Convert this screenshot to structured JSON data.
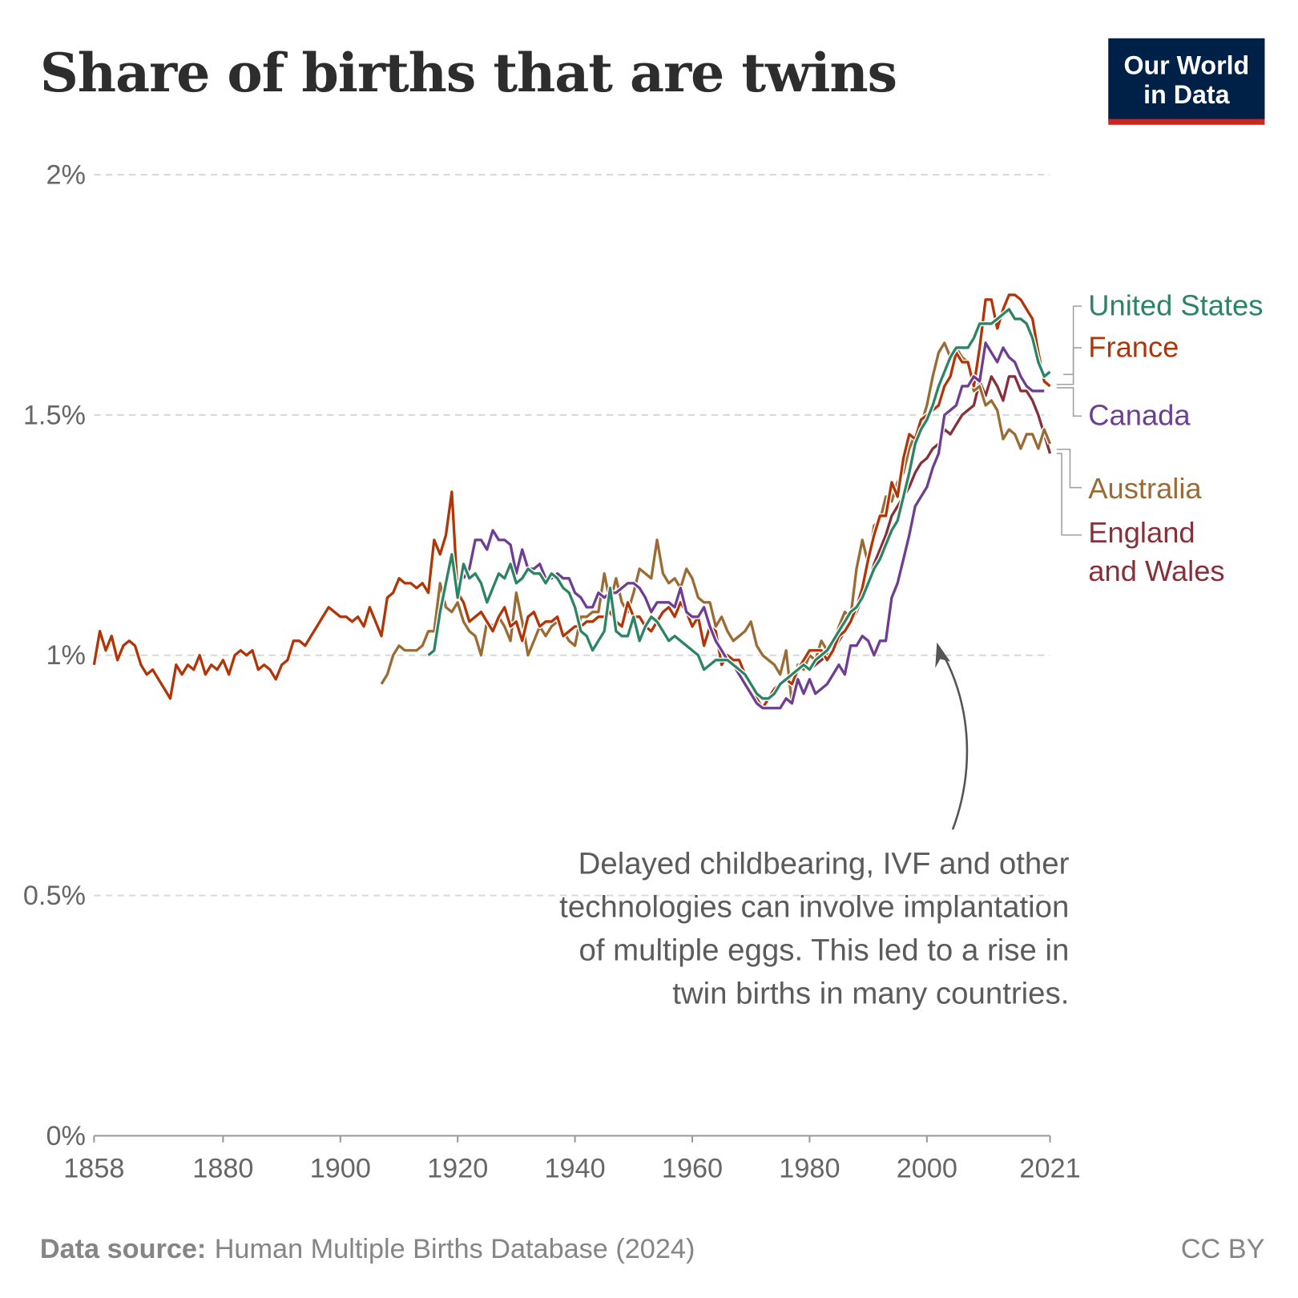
{
  "header": {
    "title": "Share of births that are twins",
    "logo": "Our World in Data",
    "logo_line1": "Our World",
    "logo_line2": "in Data"
  },
  "footer": {
    "source_label": "Data source:",
    "source_text": "Human Multiple Births Database (2024)",
    "license": "CC BY"
  },
  "annotation": {
    "lines": [
      "Delayed childbearing, IVF and other",
      "technologies can involve implantation",
      "of multiple eggs. This led to a rise in",
      "twin births in many countries."
    ]
  },
  "chart_data": {
    "type": "line",
    "title": "Share of births that are twins",
    "xlim": [
      1858,
      2021
    ],
    "ylim": [
      0,
      2
    ],
    "x_ticks": [
      "1858",
      "1880",
      "1900",
      "1920",
      "1940",
      "1960",
      "1980",
      "2000",
      "2021"
    ],
    "y_ticks": [
      "0%",
      "0.5%",
      "1%",
      "1.5%",
      "2%"
    ],
    "grid": "horizontal dashed",
    "legend": "right, labels at line ends",
    "series": [
      {
        "name": "United States",
        "color": "#2c8465",
        "start": 1915,
        "values": [
          1.0,
          1.01,
          1.09,
          1.15,
          1.21,
          1.12,
          1.19,
          1.16,
          1.17,
          1.15,
          1.11,
          1.14,
          1.17,
          1.16,
          1.19,
          1.15,
          1.16,
          1.18,
          1.17,
          1.17,
          1.15,
          1.17,
          1.16,
          1.14,
          1.13,
          1.1,
          1.05,
          1.04,
          1.01,
          1.03,
          1.05,
          1.14,
          1.05,
          1.04,
          1.04,
          1.08,
          1.03,
          1.06,
          1.08,
          1.07,
          1.05,
          1.03,
          1.04,
          1.03,
          1.02,
          1.01,
          1.0,
          0.97,
          0.98,
          0.99,
          0.99,
          0.99,
          0.98,
          0.97,
          0.96,
          0.94,
          0.92,
          0.91,
          0.91,
          0.92,
          0.94,
          0.95,
          0.96,
          0.97,
          0.98,
          0.97,
          0.99,
          1.0,
          1.01,
          1.03,
          1.05,
          1.07,
          1.09,
          1.1,
          1.12,
          1.15,
          1.18,
          1.2,
          1.23,
          1.26,
          1.28,
          1.33,
          1.38,
          1.44,
          1.47,
          1.49,
          1.52,
          1.56,
          1.59,
          1.62,
          1.64,
          1.64,
          1.64,
          1.66,
          1.69,
          1.69,
          1.69,
          1.7,
          1.71,
          1.72,
          1.7,
          1.7,
          1.69,
          1.66,
          1.61,
          1.58,
          1.59
        ]
      },
      {
        "name": "France",
        "color": "#b13507",
        "start": 1858,
        "values": [
          0.98,
          1.05,
          1.01,
          1.04,
          0.99,
          1.02,
          1.03,
          1.02,
          0.98,
          0.96,
          0.97,
          0.95,
          0.93,
          0.91,
          0.98,
          0.96,
          0.98,
          0.97,
          1.0,
          0.96,
          0.98,
          0.97,
          0.99,
          0.96,
          1.0,
          1.01,
          1.0,
          1.01,
          0.97,
          0.98,
          0.97,
          0.95,
          0.98,
          0.99,
          1.03,
          1.03,
          1.02,
          1.04,
          1.06,
          1.08,
          1.1,
          1.09,
          1.08,
          1.08,
          1.07,
          1.08,
          1.06,
          1.1,
          1.07,
          1.04,
          1.12,
          1.13,
          1.16,
          1.15,
          1.15,
          1.14,
          1.15,
          1.13,
          1.24,
          1.21,
          1.25,
          1.34,
          1.13,
          1.11,
          1.07,
          1.08,
          1.09,
          1.07,
          1.05,
          1.08,
          1.1,
          1.06,
          1.07,
          1.03,
          1.08,
          1.09,
          1.06,
          1.07,
          1.07,
          1.08,
          1.04,
          1.05,
          1.06,
          1.06,
          1.07,
          1.07,
          1.08,
          1.08,
          1.09,
          1.07,
          1.06,
          1.11,
          1.08,
          1.08,
          1.06,
          1.05,
          1.07,
          1.09,
          1.1,
          1.08,
          1.11,
          1.09,
          1.06,
          1.08,
          1.02,
          1.06,
          1.05,
          0.98,
          1.0,
          0.99,
          0.99,
          0.96,
          0.94,
          0.91,
          0.89,
          0.91,
          0.93,
          0.94,
          0.95,
          0.94,
          0.97,
          0.99,
          1.01,
          1.01,
          1.01,
          0.99,
          1.01,
          1.04,
          1.05,
          1.07,
          1.1,
          1.14,
          1.2,
          1.25,
          1.29,
          1.29,
          1.36,
          1.33,
          1.41,
          1.46,
          1.45,
          1.49,
          1.5,
          1.51,
          1.52,
          1.56,
          1.58,
          1.63,
          1.61,
          1.61,
          1.56,
          1.64,
          1.74,
          1.74,
          1.68,
          1.72,
          1.75,
          1.75,
          1.74,
          1.72,
          1.7,
          1.63,
          1.57,
          1.56
        ]
      },
      {
        "name": "Canada",
        "color": "#6d3e91",
        "start": 1921,
        "values": [
          1.16,
          1.18,
          1.24,
          1.24,
          1.22,
          1.26,
          1.24,
          1.24,
          1.23,
          1.17,
          1.22,
          1.18,
          1.18,
          1.19,
          1.16,
          1.16,
          1.17,
          1.16,
          1.16,
          1.13,
          1.12,
          1.1,
          1.1,
          1.13,
          1.12,
          1.13,
          1.13,
          1.14,
          1.15,
          1.15,
          1.14,
          1.12,
          1.09,
          1.11,
          1.11,
          1.11,
          1.1,
          1.14,
          1.09,
          1.08,
          1.08,
          1.1,
          1.06,
          1.03,
          1.01,
          0.99,
          0.98,
          0.96,
          0.94,
          0.92,
          0.9,
          0.89,
          0.89,
          0.89,
          0.89,
          0.91,
          0.9,
          0.95,
          0.92,
          0.95,
          0.92,
          0.93,
          0.94,
          0.96,
          0.98,
          0.96,
          1.02,
          1.02,
          1.04,
          1.03,
          1.0,
          1.03,
          1.03,
          1.12,
          1.15,
          1.2,
          1.25,
          1.31,
          1.33,
          1.35,
          1.39,
          1.42,
          1.5,
          1.51,
          1.52,
          1.56,
          1.56,
          1.58,
          1.57,
          1.65,
          1.63,
          1.61,
          1.64,
          1.62,
          1.61,
          1.58,
          1.56,
          1.55,
          1.55,
          1.55
        ]
      },
      {
        "name": "Australia",
        "color": "#9a6c33",
        "start": 1907,
        "values": [
          0.94,
          0.96,
          1.0,
          1.02,
          1.01,
          1.01,
          1.01,
          1.02,
          1.05,
          1.05,
          1.15,
          1.1,
          1.09,
          1.11,
          1.07,
          1.05,
          1.04,
          1.0,
          1.07,
          1.06,
          1.08,
          1.06,
          1.03,
          1.13,
          1.07,
          1.0,
          1.03,
          1.06,
          1.04,
          1.06,
          1.07,
          1.05,
          1.03,
          1.02,
          1.08,
          1.08,
          1.09,
          1.09,
          1.17,
          1.11,
          1.16,
          1.11,
          1.09,
          1.13,
          1.18,
          1.17,
          1.16,
          1.24,
          1.17,
          1.15,
          1.16,
          1.14,
          1.18,
          1.16,
          1.12,
          1.11,
          1.11,
          1.06,
          1.08,
          1.05,
          1.03,
          1.04,
          1.05,
          1.07,
          1.02,
          1.0,
          0.99,
          0.98,
          0.96,
          1.01,
          0.9,
          0.98,
          0.97,
          1.0,
          0.99,
          1.03,
          1.01,
          1.02,
          1.06,
          1.09,
          1.08,
          1.18,
          1.24,
          1.19,
          1.27,
          1.28,
          1.33,
          1.32,
          1.36,
          1.38,
          1.43,
          1.46,
          1.48,
          1.52,
          1.58,
          1.63,
          1.65,
          1.62,
          1.64,
          1.62,
          1.61,
          1.55,
          1.56,
          1.52,
          1.53,
          1.51,
          1.45,
          1.47,
          1.46,
          1.43,
          1.46,
          1.46,
          1.43,
          1.47,
          1.44
        ]
      },
      {
        "name": "England and Wales",
        "color": "#883039",
        "start": 1980,
        "values": [
          0.97,
          0.98,
          0.99,
          1.0,
          1.01,
          1.03,
          1.05,
          1.07,
          1.09,
          1.12,
          1.15,
          1.19,
          1.22,
          1.25,
          1.29,
          1.31,
          1.33,
          1.35,
          1.38,
          1.4,
          1.41,
          1.43,
          1.44,
          1.47,
          1.46,
          1.48,
          1.5,
          1.51,
          1.52,
          1.57,
          1.54,
          1.58,
          1.56,
          1.53,
          1.58,
          1.58,
          1.55,
          1.55,
          1.53,
          1.5,
          1.46,
          1.42
        ]
      }
    ]
  }
}
